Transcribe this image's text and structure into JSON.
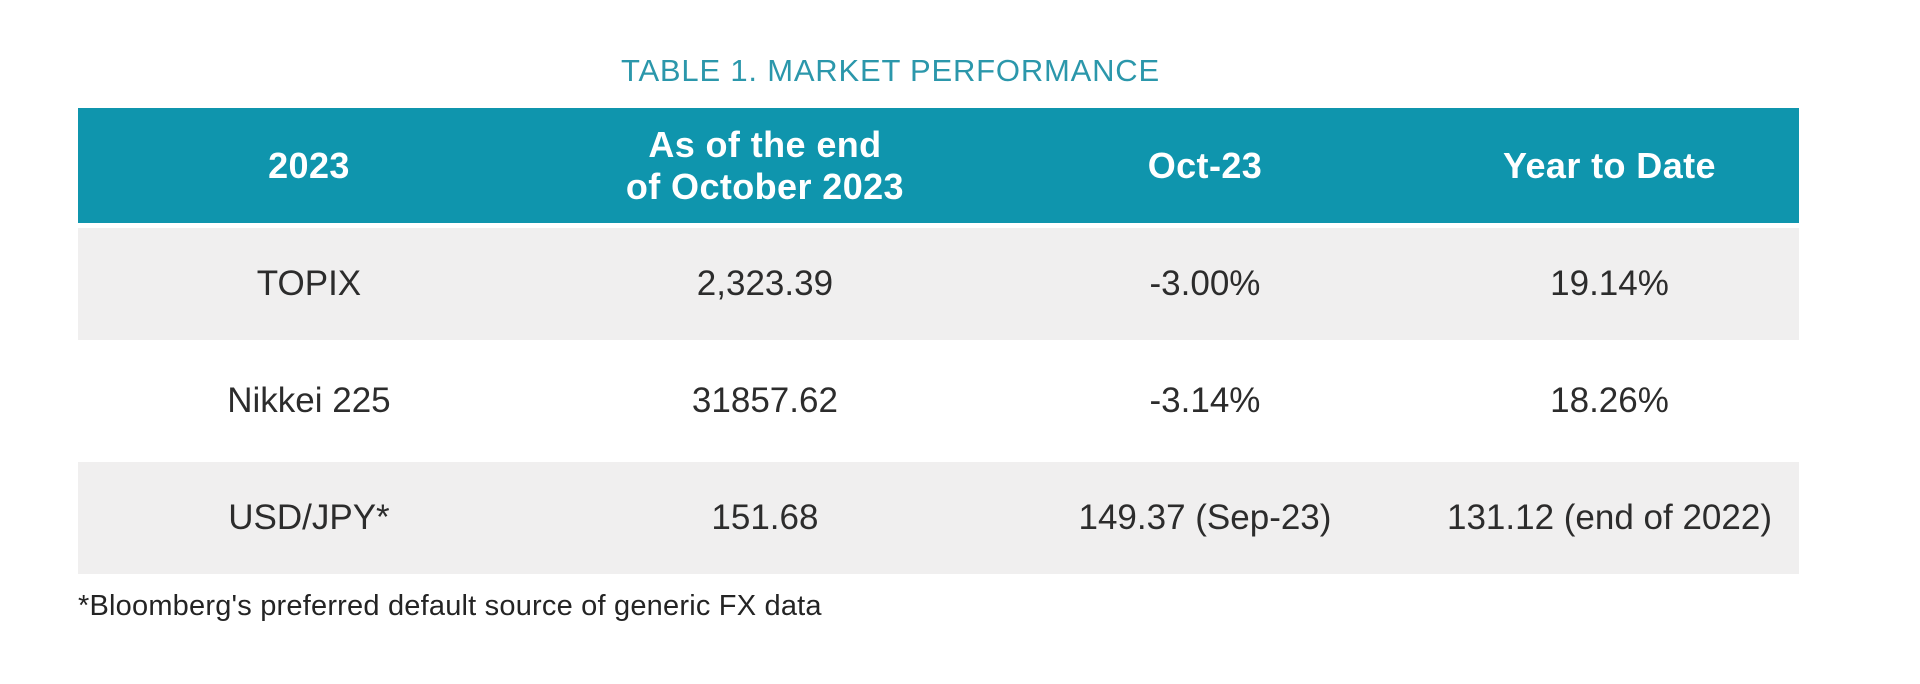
{
  "title": "TABLE 1. MARKET PERFORMANCE",
  "colors": {
    "header_background": "#0f95ad",
    "title_text": "#2b97ab",
    "shaded_row_background": "#f0efef",
    "body_text": "#2c2c2c",
    "header_text": "#ffffff"
  },
  "table": {
    "headers": [
      "2023",
      "As of the end\nof October 2023",
      "Oct-23",
      "Year to Date"
    ],
    "rows": [
      {
        "label": "TOPIX",
        "values": [
          "2,323.39",
          "-3.00%",
          "19.14%"
        ]
      },
      {
        "label": "Nikkei 225",
        "values": [
          "31857.62",
          "-3.14%",
          "18.26%"
        ]
      },
      {
        "label": "USD/JPY*",
        "values": [
          "151.68",
          "149.37 (Sep-23)",
          "131.12 (end of 2022)"
        ]
      }
    ]
  },
  "footnote": "*Bloomberg's preferred default source of generic FX data"
}
